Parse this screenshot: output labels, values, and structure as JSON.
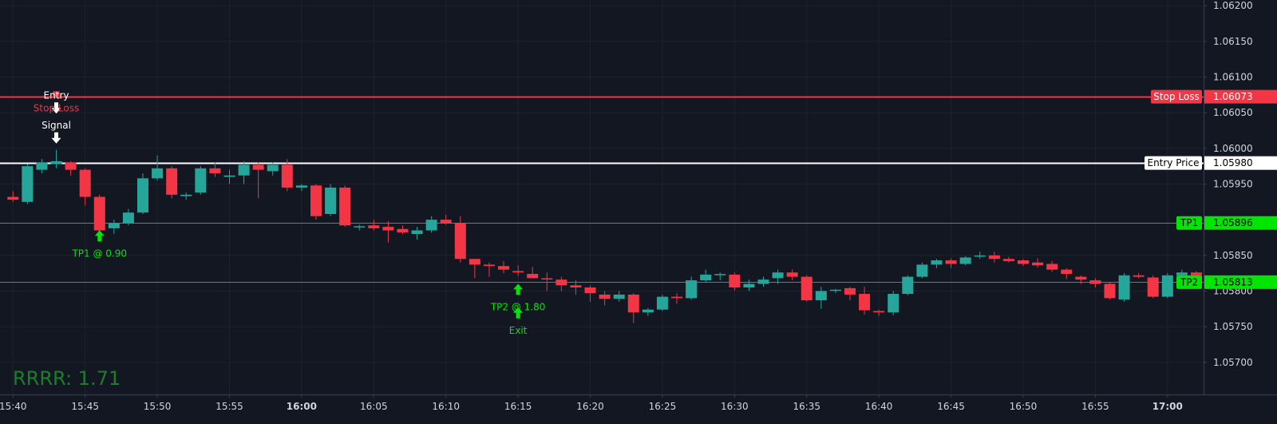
{
  "chart_data": {
    "type": "candlestick",
    "x_tick_labels": [
      {
        "label": "15:40",
        "bold": false
      },
      {
        "label": "15:45",
        "bold": false
      },
      {
        "label": "15:50",
        "bold": false
      },
      {
        "label": "15:55",
        "bold": false
      },
      {
        "label": "16:00",
        "bold": true
      },
      {
        "label": "16:05",
        "bold": false
      },
      {
        "label": "16:10",
        "bold": false
      },
      {
        "label": "16:15",
        "bold": false
      },
      {
        "label": "16:20",
        "bold": false
      },
      {
        "label": "16:25",
        "bold": false
      },
      {
        "label": "16:30",
        "bold": false
      },
      {
        "label": "16:35",
        "bold": false
      },
      {
        "label": "16:40",
        "bold": false
      },
      {
        "label": "16:45",
        "bold": false
      },
      {
        "label": "16:50",
        "bold": false
      },
      {
        "label": "16:55",
        "bold": false
      },
      {
        "label": "17:00",
        "bold": true
      }
    ],
    "y_tick_labels": [
      "1.06200",
      "1.06150",
      "1.06100",
      "1.06050",
      "1.06000",
      "1.05950",
      "1.05850",
      "1.05800",
      "1.05750",
      "1.05700"
    ],
    "ylim": [
      1.05655,
      1.06208
    ],
    "xlim_bars": [
      -0.9,
      82.5
    ],
    "candles": [
      {
        "o": 1.05932,
        "h": 1.0594,
        "l": 1.05925,
        "c": 1.05928
      },
      {
        "o": 1.05925,
        "h": 1.05978,
        "l": 1.05922,
        "c": 1.05975
      },
      {
        "o": 1.0597,
        "h": 1.05985,
        "l": 1.05965,
        "c": 1.0598
      },
      {
        "o": 1.05978,
        "h": 1.05998,
        "l": 1.05972,
        "c": 1.05982
      },
      {
        "o": 1.0598,
        "h": 1.05982,
        "l": 1.05962,
        "c": 1.0597
      },
      {
        "o": 1.0597,
        "h": 1.05972,
        "l": 1.0592,
        "c": 1.05932
      },
      {
        "o": 1.05932,
        "h": 1.05935,
        "l": 1.0588,
        "c": 1.05885
      },
      {
        "o": 1.05888,
        "h": 1.059,
        "l": 1.0588,
        "c": 1.05895
      },
      {
        "o": 1.05895,
        "h": 1.05915,
        "l": 1.05892,
        "c": 1.0591
      },
      {
        "o": 1.0591,
        "h": 1.05965,
        "l": 1.05908,
        "c": 1.05958
      },
      {
        "o": 1.05958,
        "h": 1.0599,
        "l": 1.05955,
        "c": 1.05972
      },
      {
        "o": 1.05972,
        "h": 1.05975,
        "l": 1.0593,
        "c": 1.05935
      },
      {
        "o": 1.05933,
        "h": 1.05938,
        "l": 1.05928,
        "c": 1.05935
      },
      {
        "o": 1.05938,
        "h": 1.05975,
        "l": 1.05935,
        "c": 1.05972
      },
      {
        "o": 1.05972,
        "h": 1.0598,
        "l": 1.0596,
        "c": 1.05965
      },
      {
        "o": 1.0596,
        "h": 1.0597,
        "l": 1.0595,
        "c": 1.05962
      },
      {
        "o": 1.05962,
        "h": 1.05982,
        "l": 1.0595,
        "c": 1.05977
      },
      {
        "o": 1.05977,
        "h": 1.0598,
        "l": 1.0593,
        "c": 1.0597
      },
      {
        "o": 1.05968,
        "h": 1.0598,
        "l": 1.05962,
        "c": 1.05977
      },
      {
        "o": 1.05977,
        "h": 1.05985,
        "l": 1.0594,
        "c": 1.05945
      },
      {
        "o": 1.05945,
        "h": 1.0595,
        "l": 1.0594,
        "c": 1.05948
      },
      {
        "o": 1.05948,
        "h": 1.0595,
        "l": 1.059,
        "c": 1.05905
      },
      {
        "o": 1.05908,
        "h": 1.0595,
        "l": 1.05905,
        "c": 1.05945
      },
      {
        "o": 1.05945,
        "h": 1.05948,
        "l": 1.0589,
        "c": 1.05892
      },
      {
        "o": 1.0589,
        "h": 1.05893,
        "l": 1.05885,
        "c": 1.0589
      },
      {
        "o": 1.05892,
        "h": 1.059,
        "l": 1.05885,
        "c": 1.05888
      },
      {
        "o": 1.0589,
        "h": 1.05898,
        "l": 1.05868,
        "c": 1.05885
      },
      {
        "o": 1.05887,
        "h": 1.05892,
        "l": 1.0588,
        "c": 1.05882
      },
      {
        "o": 1.0588,
        "h": 1.0589,
        "l": 1.05872,
        "c": 1.05885
      },
      {
        "o": 1.05885,
        "h": 1.05905,
        "l": 1.05882,
        "c": 1.059
      },
      {
        "o": 1.059,
        "h": 1.05907,
        "l": 1.05893,
        "c": 1.05895
      },
      {
        "o": 1.05895,
        "h": 1.05905,
        "l": 1.0584,
        "c": 1.05845
      },
      {
        "o": 1.05845,
        "h": 1.05845,
        "l": 1.05818,
        "c": 1.05837
      },
      {
        "o": 1.05837,
        "h": 1.0584,
        "l": 1.0582,
        "c": 1.05835
      },
      {
        "o": 1.05835,
        "h": 1.05842,
        "l": 1.05825,
        "c": 1.0583
      },
      {
        "o": 1.05828,
        "h": 1.05836,
        "l": 1.05821,
        "c": 1.05826
      },
      {
        "o": 1.05824,
        "h": 1.05834,
        "l": 1.05818,
        "c": 1.05818
      },
      {
        "o": 1.05817,
        "h": 1.05826,
        "l": 1.058,
        "c": 1.05816
      },
      {
        "o": 1.05816,
        "h": 1.0582,
        "l": 1.058,
        "c": 1.05808
      },
      {
        "o": 1.05808,
        "h": 1.05815,
        "l": 1.05795,
        "c": 1.05805
      },
      {
        "o": 1.05805,
        "h": 1.05808,
        "l": 1.05785,
        "c": 1.05797
      },
      {
        "o": 1.05795,
        "h": 1.058,
        "l": 1.0578,
        "c": 1.05789
      },
      {
        "o": 1.05789,
        "h": 1.058,
        "l": 1.05785,
        "c": 1.05795
      },
      {
        "o": 1.05795,
        "h": 1.05797,
        "l": 1.05755,
        "c": 1.0577
      },
      {
        "o": 1.0577,
        "h": 1.05776,
        "l": 1.05765,
        "c": 1.05774
      },
      {
        "o": 1.05774,
        "h": 1.05795,
        "l": 1.05772,
        "c": 1.05792
      },
      {
        "o": 1.05792,
        "h": 1.05797,
        "l": 1.05782,
        "c": 1.0579
      },
      {
        "o": 1.0579,
        "h": 1.0582,
        "l": 1.05788,
        "c": 1.05815
      },
      {
        "o": 1.05815,
        "h": 1.0583,
        "l": 1.05812,
        "c": 1.05823
      },
      {
        "o": 1.05823,
        "h": 1.05826,
        "l": 1.05815,
        "c": 1.05823
      },
      {
        "o": 1.05823,
        "h": 1.05826,
        "l": 1.05801,
        "c": 1.05805
      },
      {
        "o": 1.05805,
        "h": 1.05816,
        "l": 1.058,
        "c": 1.0581
      },
      {
        "o": 1.0581,
        "h": 1.0582,
        "l": 1.05806,
        "c": 1.05816
      },
      {
        "o": 1.05818,
        "h": 1.0583,
        "l": 1.0581,
        "c": 1.05826
      },
      {
        "o": 1.05826,
        "h": 1.0583,
        "l": 1.05815,
        "c": 1.0582
      },
      {
        "o": 1.0582,
        "h": 1.05822,
        "l": 1.05785,
        "c": 1.05787
      },
      {
        "o": 1.05787,
        "h": 1.05806,
        "l": 1.05775,
        "c": 1.058
      },
      {
        "o": 1.058,
        "h": 1.05803,
        "l": 1.05797,
        "c": 1.05801
      },
      {
        "o": 1.05804,
        "h": 1.05806,
        "l": 1.05787,
        "c": 1.05795
      },
      {
        "o": 1.05796,
        "h": 1.05806,
        "l": 1.05767,
        "c": 1.05773
      },
      {
        "o": 1.05772,
        "h": 1.05774,
        "l": 1.05765,
        "c": 1.0577
      },
      {
        "o": 1.0577,
        "h": 1.058,
        "l": 1.05766,
        "c": 1.05796
      },
      {
        "o": 1.05796,
        "h": 1.05822,
        "l": 1.05794,
        "c": 1.0582
      },
      {
        "o": 1.0582,
        "h": 1.0584,
        "l": 1.05818,
        "c": 1.05837
      },
      {
        "o": 1.05837,
        "h": 1.05845,
        "l": 1.05832,
        "c": 1.05843
      },
      {
        "o": 1.05843,
        "h": 1.05846,
        "l": 1.05832,
        "c": 1.05838
      },
      {
        "o": 1.05838,
        "h": 1.05849,
        "l": 1.05836,
        "c": 1.05847
      },
      {
        "o": 1.05848,
        "h": 1.05855,
        "l": 1.05845,
        "c": 1.05849
      },
      {
        "o": 1.0585,
        "h": 1.05855,
        "l": 1.0584,
        "c": 1.05845
      },
      {
        "o": 1.05845,
        "h": 1.05848,
        "l": 1.0584,
        "c": 1.05842
      },
      {
        "o": 1.05843,
        "h": 1.05845,
        "l": 1.05835,
        "c": 1.05838
      },
      {
        "o": 1.0584,
        "h": 1.05846,
        "l": 1.05833,
        "c": 1.05836
      },
      {
        "o": 1.05838,
        "h": 1.05842,
        "l": 1.05827,
        "c": 1.0583
      },
      {
        "o": 1.0583,
        "h": 1.05832,
        "l": 1.05817,
        "c": 1.05824
      },
      {
        "o": 1.0582,
        "h": 1.05822,
        "l": 1.0581,
        "c": 1.05816
      },
      {
        "o": 1.05815,
        "h": 1.05818,
        "l": 1.05805,
        "c": 1.0581
      },
      {
        "o": 1.0581,
        "h": 1.05812,
        "l": 1.05788,
        "c": 1.0579
      },
      {
        "o": 1.05788,
        "h": 1.05825,
        "l": 1.05785,
        "c": 1.05822
      },
      {
        "o": 1.05822,
        "h": 1.05825,
        "l": 1.05818,
        "c": 1.0582
      },
      {
        "o": 1.05819,
        "h": 1.05822,
        "l": 1.0579,
        "c": 1.05792
      },
      {
        "o": 1.05792,
        "h": 1.05825,
        "l": 1.0579,
        "c": 1.05822
      },
      {
        "o": 1.05822,
        "h": 1.0583,
        "l": 1.05818,
        "c": 1.05826
      },
      {
        "o": 1.05826,
        "h": 1.05828,
        "l": 1.05815,
        "c": 1.05822
      }
    ],
    "levels": [
      {
        "name": "Stop Loss",
        "price": 1.06073,
        "price_label": "1.06073",
        "color": "#f23645"
      },
      {
        "name": "Entry Price",
        "price": 1.0598,
        "price_label": "1.05980",
        "color": "#ffffff"
      },
      {
        "name": "TP1",
        "price": 1.05896,
        "price_label": "1.05896",
        "color": "#00e600"
      },
      {
        "name": "TP2",
        "price": 1.05813,
        "price_label": "1.05813",
        "color": "#00e600"
      }
    ],
    "signal_markers": [
      {
        "label": "Entry",
        "bar": 3,
        "price": 1.0607,
        "color": "#ffffff"
      },
      {
        "label": "Stop Loss",
        "bar": 3,
        "price": 1.06052,
        "color": "#f23645"
      },
      {
        "label": "Signal",
        "bar": 3,
        "price": 1.06028,
        "color": "#ffffff"
      }
    ],
    "exit_markers": [
      {
        "label": "TP1 @ 0.90",
        "bar": 6,
        "price": 1.05883,
        "color": "#00e600"
      },
      {
        "label": "TP2 @ 1.80",
        "bar": 35,
        "price": 1.05808,
        "color": "#00e600"
      },
      {
        "label": "Exit",
        "bar": 35,
        "price": 1.05775,
        "color": "#00e600"
      }
    ],
    "colors": {
      "background": "#131722",
      "up": "#26a69a",
      "down": "#f23645",
      "grid": "#1e222d",
      "axis_border": "#3a3f4f",
      "axis_text": "#d1d4dc"
    }
  },
  "stats": {
    "rrrr_label": "RRRR: 1.71"
  }
}
